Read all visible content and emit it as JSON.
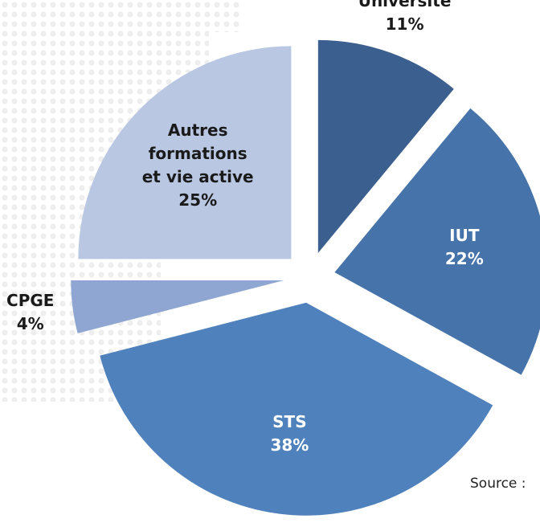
{
  "chart_data": {
    "type": "pie",
    "categories": [
      "Université",
      "IUT",
      "STS",
      "CPGE",
      "Autres formations et vie active"
    ],
    "values": [
      11,
      22,
      38,
      4,
      25
    ],
    "value_labels": [
      "11%",
      "22%",
      "38%",
      "4%",
      "25%"
    ],
    "colors": [
      "#3b5f8e",
      "#4673a9",
      "#4f81bd",
      "#8ea6d1",
      "#b9c7e2"
    ],
    "annotation": "Source :"
  }
}
